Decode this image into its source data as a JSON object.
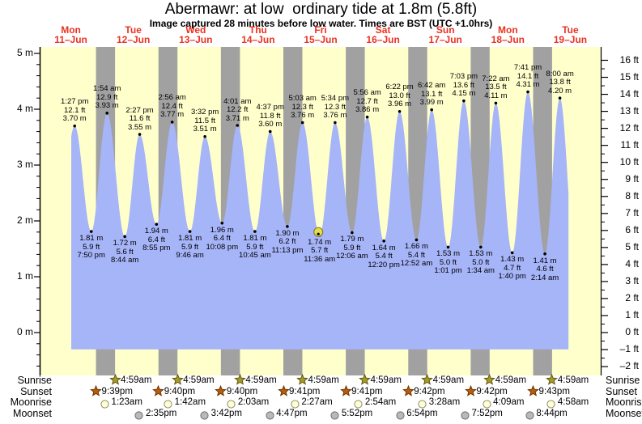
{
  "chart_data": {
    "type": "area",
    "title": "Abermawr: at low  ordinary tide at 1.8m (5.8ft)",
    "subtitle": "Image captured 28 minutes before low water. Times are BST (UTC +1.0hrs)",
    "x_axis": {
      "days": [
        {
          "name": "Mon",
          "date": "11–Jun"
        },
        {
          "name": "Tue",
          "date": "12–Jun"
        },
        {
          "name": "Wed",
          "date": "13–Jun"
        },
        {
          "name": "Thu",
          "date": "14–Jun"
        },
        {
          "name": "Fri",
          "date": "15–Jun"
        },
        {
          "name": "Sat",
          "date": "16–Jun"
        },
        {
          "name": "Sun",
          "date": "17–Jun"
        },
        {
          "name": "Mon",
          "date": "18–Jun"
        },
        {
          "name": "Tue",
          "date": "19–Jun"
        }
      ]
    },
    "y_axis_left": {
      "unit": "m",
      "ticks": [
        {
          "v": 5,
          "label": "5 m"
        },
        {
          "v": 4,
          "label": "4 m"
        },
        {
          "v": 3,
          "label": "3 m"
        },
        {
          "v": 2,
          "label": "2 m"
        },
        {
          "v": 1,
          "label": "1 m"
        },
        {
          "v": 0,
          "label": "0 m"
        }
      ]
    },
    "y_axis_right": {
      "unit": "ft",
      "ticks": [
        {
          "v": 16,
          "label": "16 ft"
        },
        {
          "v": 15,
          "label": "15 ft"
        },
        {
          "v": 14,
          "label": "14 ft"
        },
        {
          "v": 13,
          "label": "13 ft"
        },
        {
          "v": 12,
          "label": "12 ft"
        },
        {
          "v": 11,
          "label": "11 ft"
        },
        {
          "v": 10,
          "label": "10 ft"
        },
        {
          "v": 9,
          "label": "9 ft"
        },
        {
          "v": 8,
          "label": "8 ft"
        },
        {
          "v": 7,
          "label": "7 ft"
        },
        {
          "v": 6,
          "label": "6 ft"
        },
        {
          "v": 5,
          "label": "5 ft"
        },
        {
          "v": 4,
          "label": "4 ft"
        },
        {
          "v": 3,
          "label": "3 ft"
        },
        {
          "v": 2,
          "label": "2 ft"
        },
        {
          "v": 1,
          "label": "1 ft"
        },
        {
          "v": 0,
          "label": "0 ft"
        },
        {
          "v": -1,
          "label": "–1 ft"
        },
        {
          "v": -2,
          "label": "–2 ft"
        }
      ]
    },
    "tides": [
      {
        "kind": "high",
        "day": 0,
        "time": "1:27 pm",
        "ft": "12.1 ft",
        "m": "3.70 m"
      },
      {
        "kind": "low",
        "day": 0,
        "time": "7:50 pm",
        "ft": "5.9 ft",
        "m": "1.81 m"
      },
      {
        "kind": "high",
        "day": 1,
        "time": "1:54 am",
        "ft": "12.9 ft",
        "m": "3.93 m"
      },
      {
        "kind": "low",
        "day": 1,
        "time": "8:44 am",
        "ft": "5.6 ft",
        "m": "1.72 m"
      },
      {
        "kind": "high",
        "day": 1,
        "time": "2:27 pm",
        "ft": "11.6 ft",
        "m": "3.55 m"
      },
      {
        "kind": "low",
        "day": 1,
        "time": "8:55 pm",
        "ft": "6.4 ft",
        "m": "1.94 m"
      },
      {
        "kind": "high",
        "day": 2,
        "time": "2:56 am",
        "ft": "12.4 ft",
        "m": "3.77 m"
      },
      {
        "kind": "low",
        "day": 2,
        "time": "9:46 am",
        "ft": "5.9 ft",
        "m": "1.81 m"
      },
      {
        "kind": "high",
        "day": 2,
        "time": "3:32 pm",
        "ft": "11.5 ft",
        "m": "3.51 m"
      },
      {
        "kind": "low",
        "day": 2,
        "time": "10:08 pm",
        "ft": "6.4 ft",
        "m": "1.96 m"
      },
      {
        "kind": "high",
        "day": 3,
        "time": "4:01 am",
        "ft": "12.2 ft",
        "m": "3.71 m"
      },
      {
        "kind": "low",
        "day": 3,
        "time": "10:45 am",
        "ft": "5.9 ft",
        "m": "1.81 m"
      },
      {
        "kind": "high",
        "day": 3,
        "time": "4:37 pm",
        "ft": "11.8 ft",
        "m": "3.60 m"
      },
      {
        "kind": "low",
        "day": 3,
        "time": "11:13 pm",
        "ft": "6.2 ft",
        "m": "1.90 m"
      },
      {
        "kind": "high",
        "day": 4,
        "time": "5:03 am",
        "ft": "12.3 ft",
        "m": "3.76 m"
      },
      {
        "kind": "low",
        "day": 4,
        "time": "11:36 am",
        "ft": "5.7 ft",
        "m": "1.74 m"
      },
      {
        "kind": "high",
        "day": 4,
        "time": "5:34 pm",
        "ft": "12.3 ft",
        "m": "3.76 m"
      },
      {
        "kind": "low",
        "day": 5,
        "time": "12:06 am",
        "ft": "5.9 ft",
        "m": "1.79 m"
      },
      {
        "kind": "high",
        "day": 5,
        "time": "5:56 am",
        "ft": "12.7 ft",
        "m": "3.86 m"
      },
      {
        "kind": "low",
        "day": 5,
        "time": "12:20 pm",
        "ft": "5.4 ft",
        "m": "1.64 m"
      },
      {
        "kind": "high",
        "day": 5,
        "time": "6:22 pm",
        "ft": "13.0 ft",
        "m": "3.96 m"
      },
      {
        "kind": "low",
        "day": 6,
        "time": "12:52 am",
        "ft": "5.4 ft",
        "m": "1.66 m"
      },
      {
        "kind": "high",
        "day": 6,
        "time": "6:42 am",
        "ft": "13.1 ft",
        "m": "3.99 m"
      },
      {
        "kind": "low",
        "day": 6,
        "time": "1:01 pm",
        "ft": "5.0 ft",
        "m": "1.53 m"
      },
      {
        "kind": "high",
        "day": 6,
        "time": "7:03 pm",
        "ft": "13.6 ft",
        "m": "4.15 m"
      },
      {
        "kind": "low",
        "day": 7,
        "time": "1:34 am",
        "ft": "5.0 ft",
        "m": "1.53 m"
      },
      {
        "kind": "high",
        "day": 7,
        "time": "7:22 am",
        "ft": "13.5 ft",
        "m": "4.11 m"
      },
      {
        "kind": "low",
        "day": 7,
        "time": "1:40 pm",
        "ft": "4.7 ft",
        "m": "1.43 m"
      },
      {
        "kind": "high",
        "day": 7,
        "time": "7:41 pm",
        "ft": "14.1 ft",
        "m": "4.31 m"
      },
      {
        "kind": "low",
        "day": 8,
        "time": "2:14 am",
        "ft": "4.6 ft",
        "m": "1.41 m"
      },
      {
        "kind": "high",
        "day": 8,
        "time": "8:00 am",
        "ft": "13.8 ft",
        "m": "4.20 m"
      }
    ],
    "current_marker": {
      "low_tide_index": 15,
      "minutes_before_low": 28
    },
    "astro": {
      "rows": [
        {
          "label": "Sunrise",
          "icon": "sunrise-star",
          "events": [
            {
              "day": 1,
              "time": "4:59am"
            },
            {
              "day": 2,
              "time": "4:59am"
            },
            {
              "day": 3,
              "time": "4:59am"
            },
            {
              "day": 4,
              "time": "4:59am"
            },
            {
              "day": 5,
              "time": "4:59am"
            },
            {
              "day": 6,
              "time": "4:59am"
            },
            {
              "day": 7,
              "time": "4:59am"
            },
            {
              "day": 8,
              "time": "4:59am"
            }
          ]
        },
        {
          "label": "Sunset",
          "icon": "sunset-star",
          "events": [
            {
              "day": 0,
              "time": "9:39pm"
            },
            {
              "day": 1,
              "time": "9:40pm"
            },
            {
              "day": 2,
              "time": "9:40pm"
            },
            {
              "day": 3,
              "time": "9:41pm"
            },
            {
              "day": 4,
              "time": "9:41pm"
            },
            {
              "day": 5,
              "time": "9:42pm"
            },
            {
              "day": 6,
              "time": "9:42pm"
            },
            {
              "day": 7,
              "time": "9:43pm"
            }
          ]
        },
        {
          "label": "Moonrise",
          "icon": "moonrise-circle",
          "events": [
            {
              "day": 1,
              "time": "1:23am"
            },
            {
              "day": 2,
              "time": "1:42am"
            },
            {
              "day": 3,
              "time": "2:03am"
            },
            {
              "day": 4,
              "time": "2:27am"
            },
            {
              "day": 5,
              "time": "2:54am"
            },
            {
              "day": 6,
              "time": "3:28am"
            },
            {
              "day": 7,
              "time": "4:09am"
            },
            {
              "day": 8,
              "time": "4:58am"
            }
          ]
        },
        {
          "label": "Moonset",
          "icon": "moonset-circle",
          "events": [
            {
              "day": 1,
              "time": "2:35pm"
            },
            {
              "day": 2,
              "time": "3:42pm"
            },
            {
              "day": 3,
              "time": "4:47pm"
            },
            {
              "day": 4,
              "time": "5:52pm"
            },
            {
              "day": 5,
              "time": "6:54pm"
            },
            {
              "day": 6,
              "time": "7:52pm"
            },
            {
              "day": 7,
              "time": "8:44pm"
            }
          ]
        }
      ]
    },
    "colors": {
      "day_bg": "#ffffcc",
      "night_band": "#a1a1a1",
      "tide_fill": "#a6b4f8",
      "day_label": "#e93322",
      "axis": "#000000",
      "sunrise_star_fill": "#a59b28",
      "sunrise_star_stroke": "#63590e",
      "sunset_star_fill": "#bb5c09",
      "sunset_star_stroke": "#6e3604",
      "moonrise_fill": "#ffffd6",
      "moonrise_stroke": "#8e8e6e",
      "moonset_fill": "#b9b9b9",
      "moonset_stroke": "#6f6f6f",
      "marker_fill": "#e5dc4a",
      "marker_stroke": "#7d751d"
    }
  }
}
